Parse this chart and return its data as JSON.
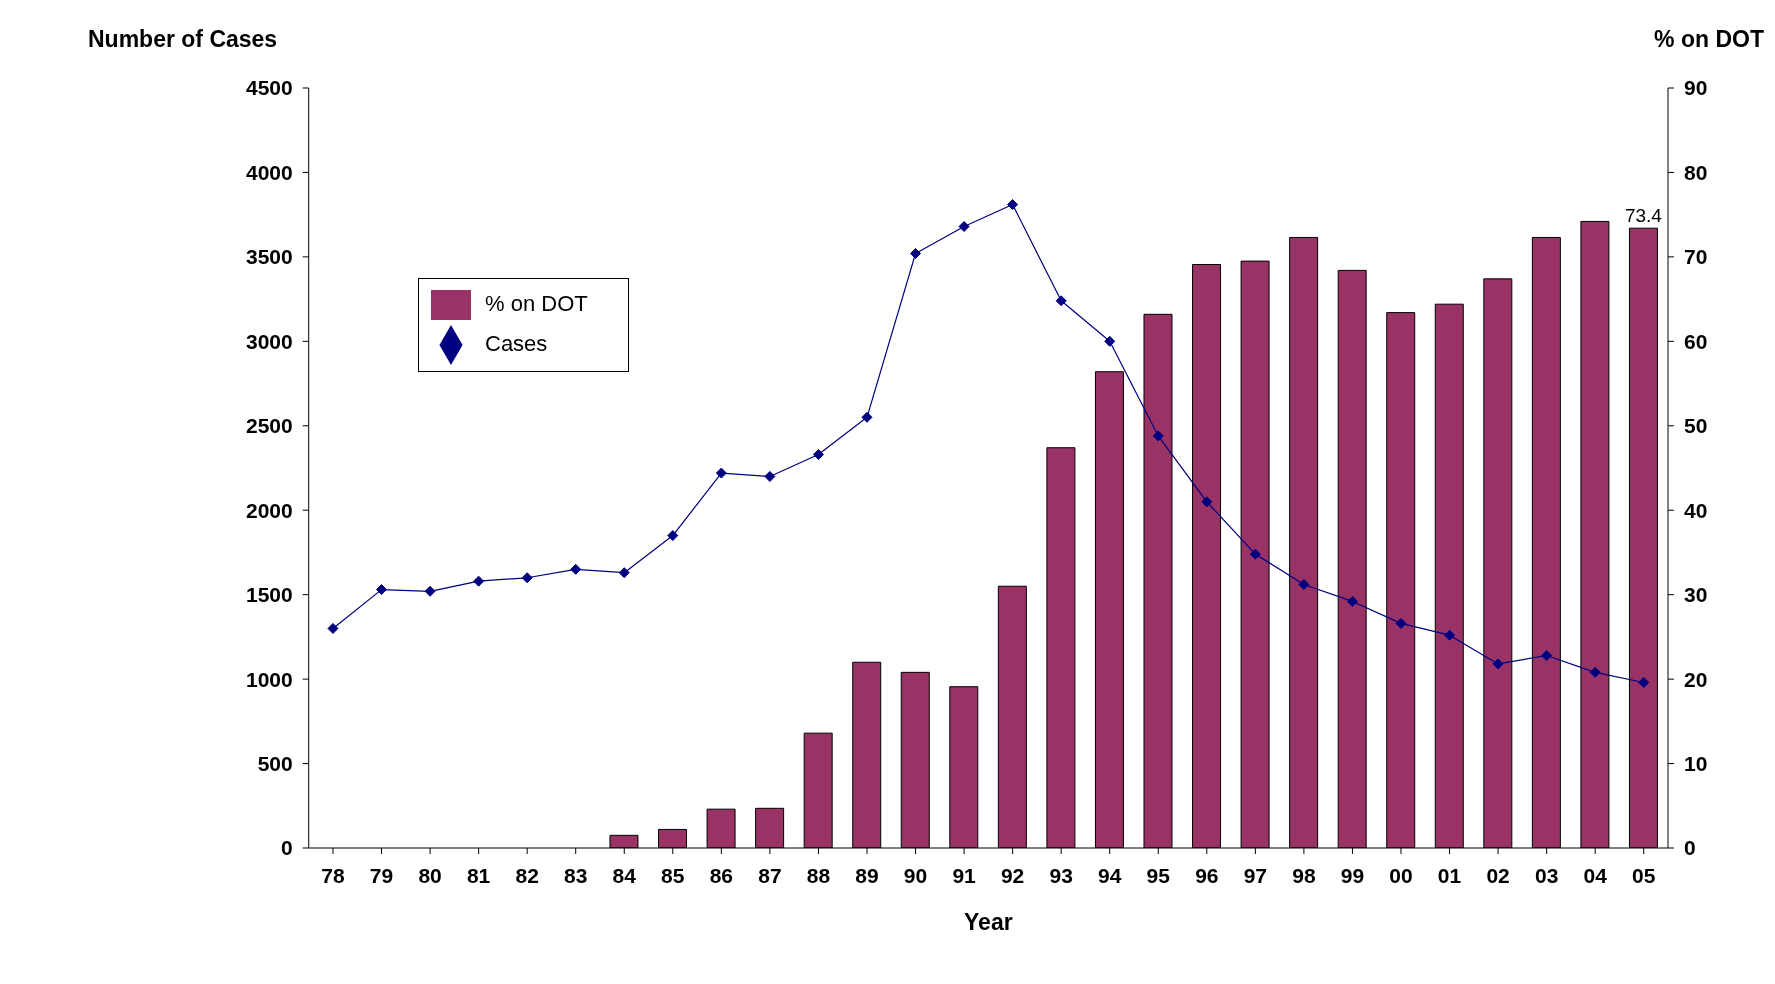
{
  "chart_data": {
    "type": "bar",
    "xlabel": "Year",
    "ylabel": "Number of Cases",
    "y2label": "% on DOT",
    "categories": [
      "78",
      "79",
      "80",
      "81",
      "82",
      "83",
      "84",
      "85",
      "86",
      "87",
      "88",
      "89",
      "90",
      "91",
      "92",
      "93",
      "94",
      "95",
      "96",
      "97",
      "98",
      "99",
      "00",
      "01",
      "02",
      "03",
      "04",
      "05"
    ],
    "series": [
      {
        "name": "% on DOT",
        "axis": "y2",
        "color": "#993366",
        "values": [
          null,
          null,
          null,
          null,
          null,
          null,
          1.5,
          2.2,
          4.6,
          4.7,
          13.6,
          22.0,
          20.8,
          19.1,
          31.0,
          47.4,
          56.4,
          63.2,
          69.1,
          69.5,
          72.3,
          68.4,
          63.4,
          64.4,
          67.4,
          72.3,
          74.2,
          73.4
        ],
        "value_labels": [
          null,
          null,
          null,
          null,
          null,
          null,
          null,
          null,
          null,
          null,
          null,
          null,
          null,
          null,
          null,
          null,
          null,
          null,
          null,
          null,
          null,
          null,
          null,
          null,
          null,
          null,
          null,
          "73.4"
        ]
      },
      {
        "name": "Cases",
        "type": "line",
        "axis": "y",
        "color": "#000080",
        "marker": "diamond",
        "values": [
          1300,
          1530,
          1520,
          1580,
          1600,
          1650,
          1630,
          1850,
          2220,
          2200,
          2330,
          2550,
          3520,
          3680,
          3810,
          3240,
          3000,
          2440,
          2050,
          1740,
          1560,
          1460,
          1330,
          1260,
          1090,
          1140,
          1040,
          980
        ]
      }
    ],
    "ylim": [
      0,
      4500
    ],
    "yticks": [
      0,
      500,
      1000,
      1500,
      2000,
      2500,
      3000,
      3500,
      4000,
      4500
    ],
    "y2lim": [
      0,
      90
    ],
    "y2ticks": [
      0,
      10,
      20,
      30,
      40,
      50,
      60,
      70,
      80,
      90
    ],
    "grid": false,
    "legend": "top left"
  }
}
